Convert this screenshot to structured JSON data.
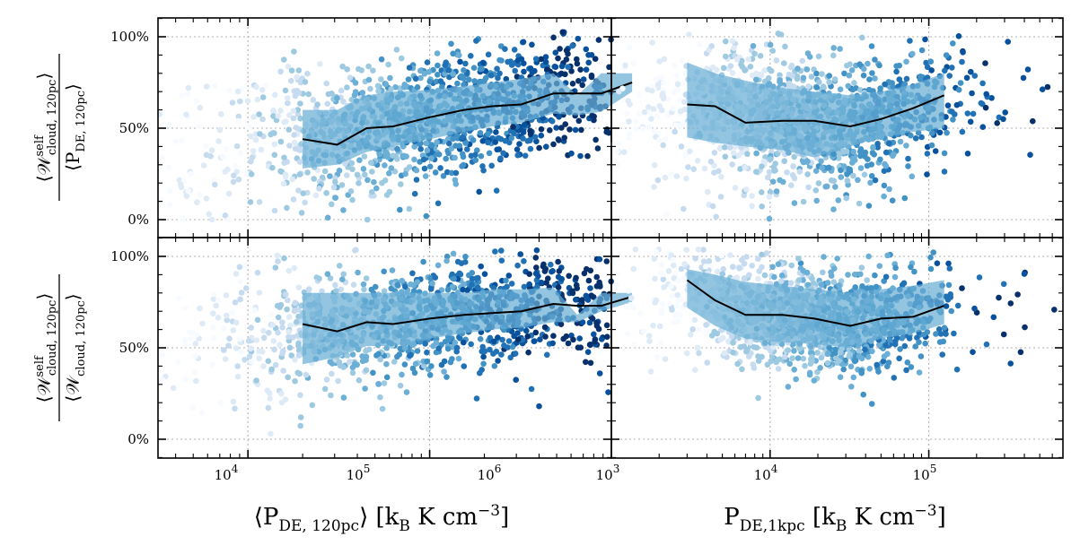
{
  "figure": {
    "x_axis_labels": [
      {
        "main": "⟨P",
        "sub": "DE, 120pc",
        "tail": "⟩  [k",
        "sub2": "B",
        "units": " K cm",
        "sup": "−3",
        "close": "]"
      },
      {
        "main": "P",
        "sub": "DE,1kpc",
        "tail": " [k",
        "sub2": "B",
        "units": " K cm",
        "sup": "−3",
        "close": "]"
      }
    ],
    "y_axis_labels": [
      {
        "num_main": "⟨𝒲",
        "num_sup": "self",
        "num_sub": "cloud, 120pc",
        "num_close": "⟩",
        "den_main": "⟨P",
        "den_sub": "DE, 120pc",
        "den_close": "⟩"
      },
      {
        "num_main": "⟨𝒲",
        "num_sup": "self",
        "num_sub": "cloud, 120pc",
        "num_close": "⟩",
        "den_main": "⟨𝒲",
        "den_sub": "cloud, 120pc",
        "den_close": "⟩"
      }
    ],
    "ytick_labels": [
      "0%",
      "50%",
      "100%"
    ],
    "xtick_labels_left": [
      {
        "base": "10",
        "exp": "4"
      },
      {
        "base": "10",
        "exp": "5"
      },
      {
        "base": "10",
        "exp": "6"
      }
    ],
    "xtick_labels_right": [
      {
        "base": "10",
        "exp": "3"
      },
      {
        "base": "10",
        "exp": "4"
      },
      {
        "base": "10",
        "exp": "5"
      }
    ],
    "colors": {
      "band": "#6aaed6",
      "median": "#000000",
      "grid": "#b0b0b0",
      "points_dark": "#08306b",
      "points_light": "#deebf7"
    }
  },
  "chart_data": [
    {
      "type": "scatter",
      "panel": "top-left",
      "xscale": "log",
      "xlim": [
        3200,
        1000000
      ],
      "ylim": [
        -10,
        110
      ],
      "xlabel": "⟨P_DE,120pc⟩ [k_B K cm^-3]",
      "ylabel": "⟨W_self cloud,120pc⟩ / ⟨P_DE,120pc⟩",
      "median": {
        "x": [
          20000,
          31000,
          45000,
          63000,
          100000,
          155000,
          220000,
          320000,
          480000,
          650000,
          880000,
          1300000
        ],
        "y": [
          44,
          41,
          50,
          51,
          56,
          60,
          62,
          63,
          69,
          69,
          69,
          75
        ]
      },
      "band": {
        "x": [
          20000,
          31000,
          45000,
          63000,
          100000,
          155000,
          220000,
          320000,
          480000,
          650000,
          880000,
          1300000
        ],
        "low": [
          28,
          30,
          37,
          40,
          44,
          48,
          51,
          53,
          58,
          57,
          59,
          70
        ],
        "high": [
          60,
          60,
          68,
          70,
          71,
          73,
          75,
          77,
          80,
          68,
          80,
          80
        ]
      },
      "points": {
        "count": 1400,
        "x_center_log": 5.0,
        "x_spread_log": 0.65,
        "y_center": 52,
        "y_spread": 18
      }
    },
    {
      "type": "scatter",
      "panel": "top-right",
      "xscale": "log",
      "xlim": [
        1000,
        700000
      ],
      "ylim": [
        -10,
        110
      ],
      "xlabel": "P_DE,1kpc [k_B K cm^-3]",
      "ylabel": "",
      "median": {
        "x": [
          3000,
          4500,
          7000,
          12000,
          19000,
          32000,
          50000,
          80000,
          125000
        ],
        "y": [
          63,
          62,
          53,
          54,
          54,
          51,
          55,
          61,
          68
        ]
      },
      "band": {
        "x": [
          3000,
          4500,
          7000,
          12000,
          19000,
          32000,
          50000,
          80000,
          125000
        ],
        "low": [
          45,
          42,
          40,
          38,
          34,
          40,
          45,
          48,
          50
        ],
        "high": [
          86,
          80,
          76,
          72,
          70,
          68,
          70,
          74,
          80
        ]
      },
      "points": {
        "count": 1400,
        "x_center_log": 4.2,
        "x_spread_log": 0.5,
        "y_center": 52,
        "y_spread": 18
      }
    },
    {
      "type": "scatter",
      "panel": "bottom-left",
      "xscale": "log",
      "xlim": [
        3200,
        1000000
      ],
      "ylim": [
        -10,
        110
      ],
      "xlabel": "⟨P_DE,120pc⟩ [k_B K cm^-3]",
      "ylabel": "⟨W_self cloud,120pc⟩ / ⟨W_cloud,120pc⟩",
      "median": {
        "x": [
          20000,
          31000,
          45000,
          63000,
          100000,
          155000,
          220000,
          320000,
          480000,
          650000,
          880000,
          1300000
        ],
        "y": [
          63,
          59,
          64,
          63,
          66,
          68,
          69,
          70,
          74,
          73,
          73,
          78
        ]
      },
      "band": {
        "x": [
          20000,
          31000,
          45000,
          63000,
          100000,
          155000,
          220000,
          320000,
          480000,
          650000,
          880000,
          1300000
        ],
        "low": [
          41,
          45,
          51,
          51,
          55,
          58,
          60,
          61,
          64,
          64,
          70,
          75
        ],
        "high": [
          80,
          80,
          80,
          80,
          80,
          80,
          82,
          82,
          83,
          68,
          80,
          80
        ]
      },
      "points": {
        "count": 1300,
        "x_center_log": 5.0,
        "x_spread_log": 0.65,
        "y_center": 64,
        "y_spread": 15
      }
    },
    {
      "type": "scatter",
      "panel": "bottom-right",
      "xscale": "log",
      "xlim": [
        1000,
        700000
      ],
      "ylim": [
        -10,
        110
      ],
      "xlabel": "P_DE,1kpc [k_B K cm^-3]",
      "ylabel": "",
      "median": {
        "x": [
          3000,
          4500,
          7000,
          12000,
          19000,
          32000,
          50000,
          80000,
          125000
        ],
        "y": [
          87,
          76,
          68,
          68,
          66,
          62,
          66,
          67,
          73
        ]
      },
      "band": {
        "x": [
          3000,
          4500,
          7000,
          12000,
          19000,
          32000,
          50000,
          80000,
          125000
        ],
        "low": [
          72,
          62,
          55,
          53,
          52,
          50,
          55,
          58,
          63
        ],
        "high": [
          93,
          90,
          86,
          84,
          82,
          80,
          82,
          84,
          87
        ]
      },
      "points": {
        "count": 1300,
        "x_center_log": 4.2,
        "x_spread_log": 0.5,
        "y_center": 66,
        "y_spread": 15
      }
    }
  ]
}
